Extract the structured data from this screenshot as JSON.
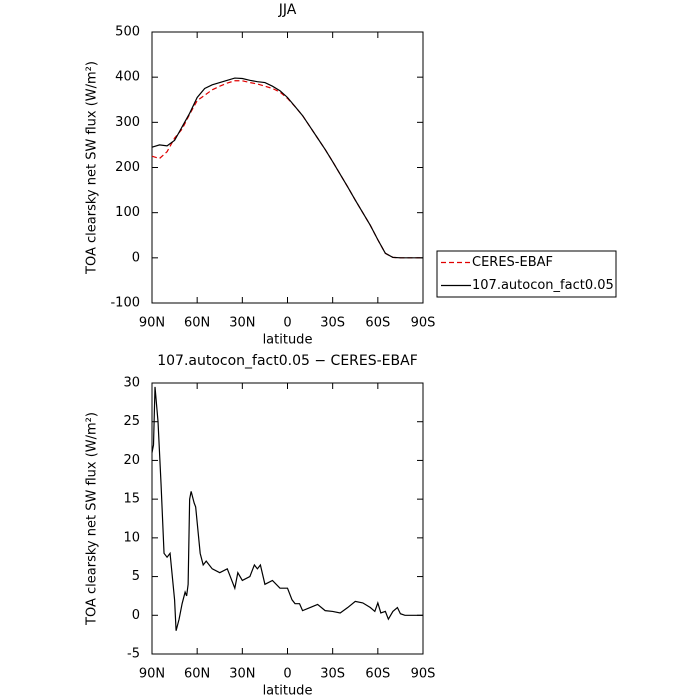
{
  "chart_data": [
    {
      "type": "line",
      "title": "JJA",
      "xlabel": "latitude",
      "ylabel": "TOA clearsky net SW flux (W/m²)",
      "x": [
        90,
        85,
        80,
        75,
        70,
        65,
        60,
        55,
        50,
        45,
        40,
        35,
        30,
        25,
        20,
        15,
        10,
        5,
        0,
        -5,
        -10,
        -15,
        -20,
        -25,
        -30,
        -35,
        -40,
        -45,
        -50,
        -55,
        -60,
        -65,
        -70,
        -75,
        -80,
        -85,
        -90
      ],
      "series": [
        {
          "name": "CERES-EBAF",
          "color": "#e00000",
          "dash": true,
          "values": [
            225,
            220,
            235,
            265,
            285,
            318,
            348,
            360,
            372,
            380,
            387,
            392,
            392,
            388,
            385,
            380,
            375,
            367,
            353,
            335,
            315,
            290,
            265,
            240,
            213,
            185,
            157,
            128,
            100,
            72,
            40,
            10,
            1,
            0,
            0,
            0,
            0
          ]
        },
        {
          "name": "107.autocon_fact0.05",
          "color": "#000000",
          "dash": false,
          "values": [
            245,
            250,
            248,
            260,
            290,
            320,
            355,
            375,
            383,
            388,
            393,
            398,
            397,
            393,
            390,
            388,
            380,
            370,
            355,
            335,
            315,
            290,
            265,
            240,
            213,
            185,
            157,
            128,
            100,
            72,
            40,
            10,
            1,
            0,
            0,
            0,
            0
          ]
        }
      ],
      "xlim": [
        90,
        -90
      ],
      "xticks": [
        {
          "value": 90,
          "label": "90N"
        },
        {
          "value": 60,
          "label": "60N"
        },
        {
          "value": 30,
          "label": "30N"
        },
        0,
        {
          "value": -30,
          "label": "30S"
        },
        {
          "value": -60,
          "label": "60S"
        },
        {
          "value": -90,
          "label": "90S"
        }
      ],
      "ylim": [
        -100,
        500
      ],
      "yticks": [
        -100,
        0,
        100,
        200,
        300,
        400,
        500
      ]
    },
    {
      "type": "line",
      "title": "107.autocon_fact0.05 − CERES-EBAF",
      "xlabel": "latitude",
      "ylabel": "TOA clearsky net SW flux (W/m²)",
      "x": [
        90,
        89,
        88,
        86,
        84,
        82,
        80,
        78,
        77,
        75,
        74,
        72,
        70,
        68,
        67,
        66,
        65,
        64,
        62,
        61,
        58,
        56,
        54,
        50,
        45,
        40,
        37,
        35,
        33,
        30,
        25,
        22,
        20,
        18,
        15,
        10,
        5,
        0,
        -3,
        -5,
        -8,
        -10,
        -15,
        -20,
        -25,
        -30,
        -35,
        -40,
        -45,
        -50,
        -55,
        -58,
        -60,
        -62,
        -65,
        -67,
        -70,
        -73,
        -75,
        -78,
        -80,
        -85,
        -90
      ],
      "series": [
        {
          "color": "#000000",
          "values": [
            21,
            22,
            29.5,
            25,
            17,
            8,
            7.5,
            8,
            6,
            2,
            -2,
            -0.5,
            1.5,
            3,
            2.5,
            4,
            15,
            16,
            14.5,
            14,
            8,
            6.5,
            7,
            6,
            5.5,
            6,
            4.5,
            3.5,
            5.5,
            4.5,
            5,
            6.5,
            6,
            6.5,
            4,
            4.5,
            3.5,
            3.5,
            2,
            1.5,
            1.5,
            0.6,
            1,
            1.4,
            0.6,
            0.5,
            0.3,
            1,
            1.8,
            1.6,
            1,
            0.5,
            1.6,
            0.3,
            0.5,
            -0.5,
            0.5,
            1,
            0.2,
            0,
            0,
            0,
            0
          ]
        }
      ],
      "xlim": [
        90,
        -90
      ],
      "xticks": [
        {
          "value": 90,
          "label": "90N"
        },
        {
          "value": 60,
          "label": "60N"
        },
        {
          "value": 30,
          "label": "30N"
        },
        0,
        {
          "value": -30,
          "label": "30S"
        },
        {
          "value": -60,
          "label": "60S"
        },
        {
          "value": -90,
          "label": "90S"
        }
      ],
      "ylim": [
        -5,
        30
      ],
      "yticks": [
        -5,
        0,
        5,
        10,
        15,
        20,
        25,
        30
      ]
    }
  ]
}
